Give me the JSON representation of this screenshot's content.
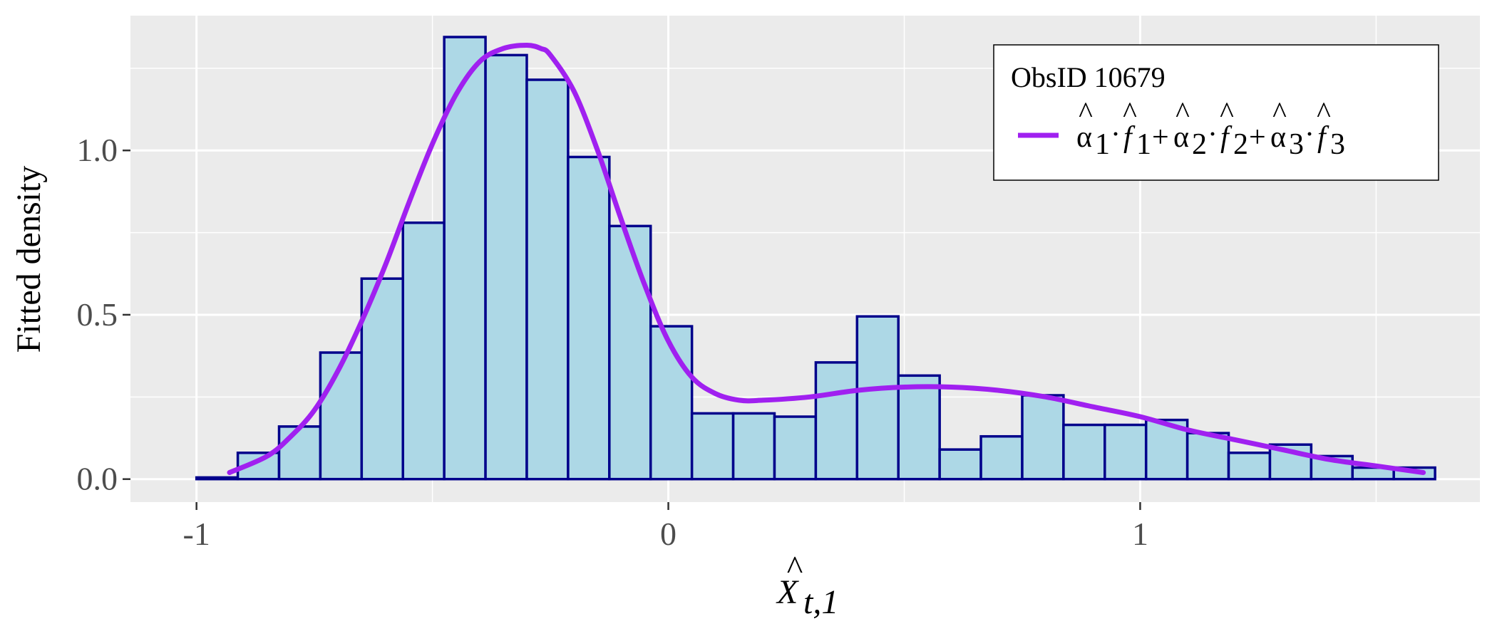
{
  "chart_data": {
    "type": "histogram",
    "title": "",
    "xlabel_base": "X",
    "xlabel_sub": "t,1",
    "ylabel": "Fitted density",
    "xlim": [
      -1.14,
      1.72
    ],
    "ylim": [
      -0.07,
      1.41
    ],
    "x_ticks": [
      -1,
      0,
      1
    ],
    "x_tick_labels": [
      "-1",
      "0",
      "1"
    ],
    "y_ticks": [
      0.0,
      0.5,
      1.0
    ],
    "y_tick_labels": [
      "0.0",
      "0.5",
      "1.0"
    ],
    "grid": true,
    "panel_background": "#ebebeb",
    "bar_fill": "#add8e6",
    "bar_edge": "#00008b",
    "curve_color": "#a020f0",
    "bins": {
      "edges": [
        -1.0,
        -0.9125,
        -0.825,
        -0.7375,
        -0.65,
        -0.5625,
        -0.475,
        -0.3875,
        -0.3,
        -0.2125,
        -0.125,
        -0.0375,
        0.05,
        0.1375,
        0.225,
        0.3125,
        0.4,
        0.4875,
        0.575,
        0.6625,
        0.75,
        0.8375,
        0.925,
        1.0125,
        1.1,
        1.1875,
        1.275,
        1.3625,
        1.45,
        1.5375,
        1.625
      ],
      "densities": [
        0.005,
        0.08,
        0.16,
        0.385,
        0.61,
        0.78,
        1.345,
        1.29,
        1.215,
        0.98,
        0.77,
        0.465,
        0.2,
        0.2,
        0.19,
        0.355,
        0.495,
        0.315,
        0.09,
        0.13,
        0.255,
        0.165,
        0.165,
        0.18,
        0.14,
        0.08,
        0.105,
        0.07,
        0.035,
        0.035
      ]
    },
    "series": [
      {
        "name": "alpha_hat_1 * f_hat_1 + alpha_hat_2 * f_hat_2 + alpha_hat_3 * f_hat_3",
        "x": [
          -0.93,
          -0.85,
          -0.8,
          -0.75,
          -0.7,
          -0.65,
          -0.6,
          -0.55,
          -0.5,
          -0.45,
          -0.4,
          -0.35,
          -0.3,
          -0.27,
          -0.25,
          -0.2,
          -0.15,
          -0.1,
          -0.05,
          0.0,
          0.05,
          0.1,
          0.15,
          0.2,
          0.3,
          0.4,
          0.5,
          0.6,
          0.7,
          0.8,
          0.9,
          1.0,
          1.1,
          1.2,
          1.3,
          1.4,
          1.5,
          1.6
        ],
        "y": [
          0.02,
          0.07,
          0.13,
          0.21,
          0.33,
          0.48,
          0.65,
          0.84,
          1.02,
          1.17,
          1.27,
          1.31,
          1.32,
          1.31,
          1.29,
          1.18,
          1.0,
          0.79,
          0.59,
          0.42,
          0.31,
          0.26,
          0.24,
          0.24,
          0.25,
          0.27,
          0.28,
          0.28,
          0.27,
          0.25,
          0.22,
          0.19,
          0.15,
          0.12,
          0.09,
          0.06,
          0.04,
          0.02
        ]
      }
    ],
    "legend": {
      "title": "ObsID 10679",
      "position": "top-right",
      "label_parts": [
        {
          "sym": "α",
          "sub": "1"
        },
        {
          "sym": "f",
          "sub": "1"
        },
        {
          "sym": "α",
          "sub": "2"
        },
        {
          "sym": "f",
          "sub": "2"
        },
        {
          "sym": "α",
          "sub": "3"
        },
        {
          "sym": "f",
          "sub": "3"
        }
      ],
      "dot": "·",
      "plus": "+",
      "hat": "^"
    }
  }
}
